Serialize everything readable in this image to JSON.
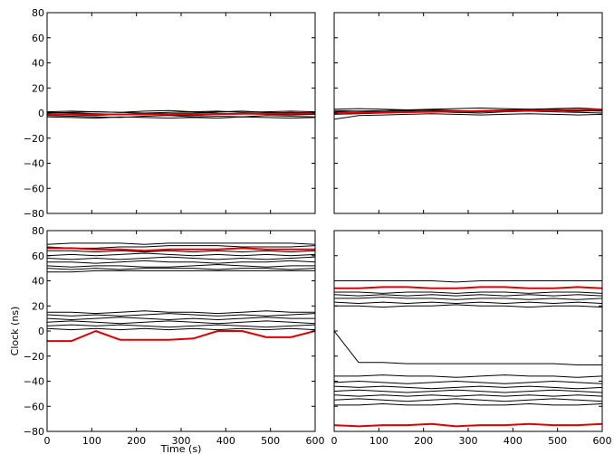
{
  "chart_data": {
    "type": "line",
    "xlabel": "Time (s)",
    "ylabel": "Clock (ns)",
    "xlim": [
      0,
      600
    ],
    "ylim": [
      -80,
      80
    ],
    "xticks": [
      0,
      100,
      200,
      300,
      400,
      500,
      600
    ],
    "yticks": [
      -80,
      -60,
      -40,
      -20,
      0,
      20,
      40,
      60,
      80
    ],
    "colors": {
      "highlight": "#e00000",
      "traces": "#000000"
    },
    "grid": false,
    "panels": [
      {
        "position": "top-left",
        "show_yticklabels": true,
        "show_xticklabels": false,
        "series": [
          {
            "y": [
              -1,
              -1.5,
              -2,
              -1,
              -0.5,
              -1.5,
              -2,
              -1,
              -0.5,
              -1,
              -1.5,
              -1
            ],
            "highlight": false
          },
          {
            "y": [
              0,
              0.5,
              1,
              0.5,
              0,
              -0.5,
              0,
              1,
              1.5,
              0.5,
              0,
              0.5
            ],
            "highlight": false
          },
          {
            "y": [
              -2,
              -2.5,
              -3,
              -3.5,
              -2.5,
              -2,
              -3,
              -2.5,
              -3,
              -2,
              -2.5,
              -3
            ],
            "highlight": false
          },
          {
            "y": [
              1,
              1.5,
              1,
              0.5,
              1.5,
              2,
              1,
              1.5,
              0.5,
              1,
              1.5,
              1
            ],
            "highlight": false
          },
          {
            "y": [
              -3,
              -3.5,
              -4,
              -3,
              -3.5,
              -4,
              -3.5,
              -4,
              -3,
              -3.5,
              -4,
              -3.5
            ],
            "highlight": false
          },
          {
            "y": [
              0.5,
              0,
              -0.5,
              -1,
              0,
              0.5,
              1,
              0,
              -0.5,
              0,
              0.5,
              0
            ],
            "highlight": false
          },
          {
            "y": [
              -1,
              -1,
              -1.2,
              -1.1,
              -1,
              -0.9,
              -0.8,
              -0.8,
              -0.6,
              -0.5,
              -0.4,
              -0.3
            ],
            "highlight": true
          }
        ]
      },
      {
        "position": "top-right",
        "show_yticklabels": false,
        "show_xticklabels": false,
        "series": [
          {
            "y": [
              1,
              1.5,
              2,
              2.5,
              2,
              1.5,
              2,
              2.5,
              3,
              2,
              1.5,
              2
            ],
            "highlight": false
          },
          {
            "y": [
              -1,
              -0.5,
              0,
              0.5,
              1,
              0.5,
              0,
              1,
              1.5,
              1,
              0.5,
              0
            ],
            "highlight": false
          },
          {
            "y": [
              3,
              3.5,
              3,
              2.5,
              3,
              3.5,
              4,
              3.5,
              3,
              3.5,
              4,
              3
            ],
            "highlight": false
          },
          {
            "y": [
              -5,
              -2,
              -1.5,
              -1,
              -0.5,
              -1,
              -1.5,
              -1,
              -0.5,
              -1,
              -1.5,
              -1
            ],
            "highlight": false
          },
          {
            "y": [
              0,
              0.5,
              1,
              1.5,
              1,
              0.5,
              1,
              1.5,
              2,
              3,
              2,
              1.5
            ],
            "highlight": false
          },
          {
            "y": [
              2,
              1.5,
              1,
              2,
              2.5,
              2,
              1.5,
              2,
              2.5,
              2,
              1.5,
              2
            ],
            "highlight": false
          },
          {
            "y": [
              0,
              0.2,
              0.5,
              0.8,
              1,
              1.2,
              1.5,
              1.8,
              2,
              2.2,
              2.5,
              2.8
            ],
            "highlight": true
          }
        ]
      },
      {
        "position": "bottom-left",
        "show_yticklabels": true,
        "show_xticklabels": true,
        "series": [
          {
            "y": [
              69,
              70,
              70,
              70,
              69,
              70,
              70,
              70,
              70,
              70,
              70,
              69
            ],
            "highlight": false
          },
          {
            "y": [
              67,
              66,
              66,
              67,
              67,
              68,
              68,
              68,
              67,
              67,
              67,
              68
            ],
            "highlight": false
          },
          {
            "y": [
              64,
              64,
              63,
              64,
              63,
              64,
              63,
              64,
              63,
              64,
              63,
              64
            ],
            "highlight": false
          },
          {
            "y": [
              60,
              61,
              60,
              61,
              62,
              61,
              60,
              61,
              60,
              61,
              60,
              61
            ],
            "highlight": false
          },
          {
            "y": [
              58,
              57,
              58,
              57,
              58,
              59,
              58,
              57,
              58,
              57,
              58,
              59
            ],
            "highlight": false
          },
          {
            "y": [
              55,
              55,
              54,
              55,
              56,
              55,
              55,
              54,
              55,
              55,
              56,
              55
            ],
            "highlight": false
          },
          {
            "y": [
              52,
              51,
              52,
              52,
              51,
              51,
              52,
              53,
              52,
              51,
              52,
              52
            ],
            "highlight": false
          },
          {
            "y": [
              50,
              49,
              50,
              49,
              50,
              50,
              50,
              49,
              50,
              50,
              49,
              50
            ],
            "highlight": false
          },
          {
            "y": [
              47,
              47,
              48,
              48,
              48,
              48,
              48,
              48,
              48,
              48,
              48,
              48
            ],
            "highlight": false
          },
          {
            "y": [
              15,
              15,
              14,
              15,
              16,
              15,
              15,
              14,
              15,
              16,
              15,
              15
            ],
            "highlight": false
          },
          {
            "y": [
              13,
              12,
              13,
              12,
              13,
              14,
              13,
              12,
              13,
              12,
              13,
              14
            ],
            "highlight": false
          },
          {
            "y": [
              10,
              9,
              10,
              11,
              10,
              9,
              10,
              9,
              10,
              11,
              10,
              10
            ],
            "highlight": false
          },
          {
            "y": [
              7,
              8,
              7,
              6,
              7,
              8,
              7,
              6,
              7,
              8,
              7,
              6
            ],
            "highlight": false
          },
          {
            "y": [
              4,
              5,
              4,
              5,
              4,
              3,
              4,
              5,
              4,
              3,
              4,
              5
            ],
            "highlight": false
          },
          {
            "y": [
              2,
              1,
              2,
              1,
              2,
              1,
              2,
              1,
              2,
              1,
              2,
              1
            ],
            "highlight": false
          },
          {
            "y": [
              66,
              66,
              65,
              65,
              64,
              65,
              65,
              65,
              66,
              65,
              65,
              65
            ],
            "highlight": true
          },
          {
            "y": [
              -8,
              -8,
              0,
              -7,
              -7,
              -7,
              -6,
              0,
              0,
              -5,
              -5,
              0
            ],
            "highlight": true
          }
        ]
      },
      {
        "position": "bottom-right",
        "show_yticklabels": false,
        "show_xticklabels": true,
        "series": [
          {
            "y": [
              40,
              40,
              40,
              40,
              40,
              39,
              40,
              40,
              40,
              40,
              40,
              40
            ],
            "highlight": false
          },
          {
            "y": [
              31,
              31,
              30,
              31,
              31,
              30,
              31,
              31,
              30,
              31,
              31,
              30
            ],
            "highlight": false
          },
          {
            "y": [
              29,
              28,
              29,
              28,
              29,
              28,
              29,
              28,
              29,
              28,
              29,
              28
            ],
            "highlight": false
          },
          {
            "y": [
              26,
              26,
              27,
              26,
              26,
              25,
              26,
              26,
              25,
              26,
              25,
              26
            ],
            "highlight": false
          },
          {
            "y": [
              23,
              22,
              23,
              22,
              23,
              22,
              23,
              22,
              23,
              22,
              23,
              22
            ],
            "highlight": false
          },
          {
            "y": [
              20,
              20,
              19,
              20,
              20,
              21,
              20,
              20,
              19,
              20,
              20,
              19
            ],
            "highlight": false
          },
          {
            "y": [
              0,
              -25,
              -25,
              -26,
              -26,
              -26,
              -26,
              -26,
              -26,
              -26,
              -27,
              -27
            ],
            "highlight": false
          },
          {
            "y": [
              -36,
              -36,
              -35,
              -36,
              -36,
              -37,
              -36,
              -35,
              -36,
              -36,
              -37,
              -36
            ],
            "highlight": false
          },
          {
            "y": [
              -41,
              -40,
              -41,
              -42,
              -41,
              -40,
              -41,
              -42,
              -41,
              -40,
              -41,
              -42
            ],
            "highlight": false
          },
          {
            "y": [
              -44,
              -45,
              -44,
              -45,
              -46,
              -45,
              -44,
              -45,
              -44,
              -45,
              -46,
              -45
            ],
            "highlight": false
          },
          {
            "y": [
              -48,
              -47,
              -48,
              -49,
              -48,
              -47,
              -48,
              -49,
              -48,
              -47,
              -48,
              -49
            ],
            "highlight": false
          },
          {
            "y": [
              -51,
              -52,
              -51,
              -52,
              -51,
              -52,
              -51,
              -52,
              -51,
              -52,
              -51,
              -52
            ],
            "highlight": false
          },
          {
            "y": [
              -55,
              -54,
              -55,
              -56,
              -55,
              -54,
              -55,
              -56,
              -55,
              -54,
              -55,
              -56
            ],
            "highlight": false
          },
          {
            "y": [
              -59,
              -59,
              -58,
              -59,
              -59,
              -58,
              -59,
              -59,
              -58,
              -59,
              -59,
              -58
            ],
            "highlight": false
          },
          {
            "y": [
              34,
              34,
              35,
              35,
              34,
              34,
              35,
              35,
              34,
              34,
              35,
              34
            ],
            "highlight": true
          },
          {
            "y": [
              -75,
              -76,
              -75,
              -75,
              -74,
              -76,
              -75,
              -75,
              -74,
              -75,
              -75,
              -74
            ],
            "highlight": true
          }
        ]
      }
    ]
  }
}
